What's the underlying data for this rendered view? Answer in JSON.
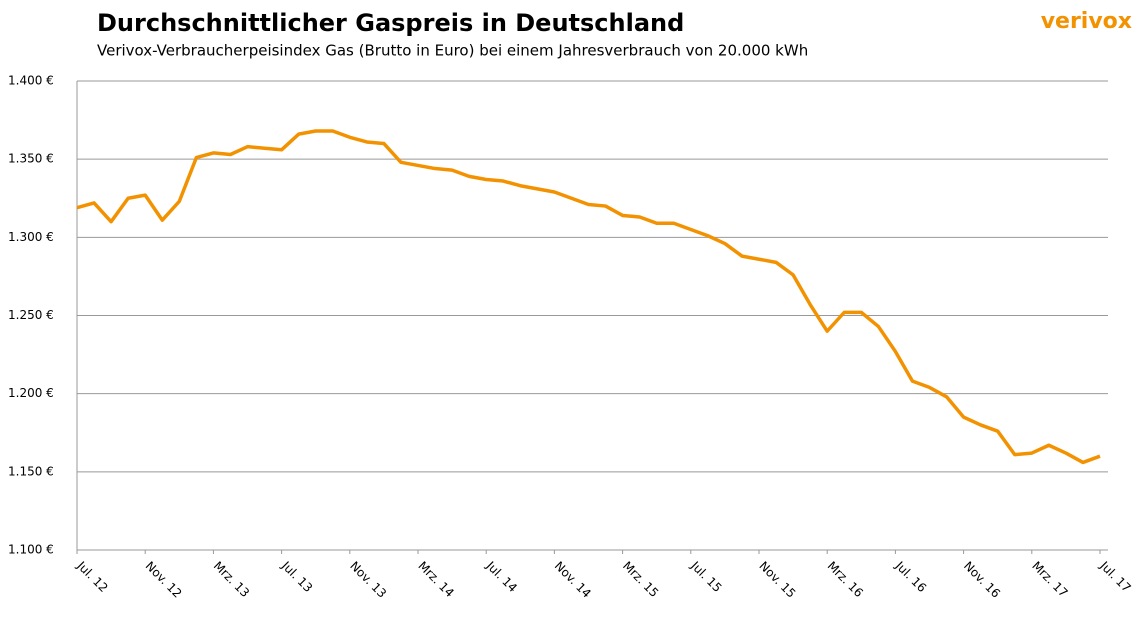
{
  "chart_data": {
    "type": "line",
    "title": "Durchschnittlicher Gaspreis in Deutschland",
    "subtitle": "Verivox-Verbraucherpeisindex Gas (Brutto in Euro) bei einem  Jahresverbrauch von 20.000 kWh",
    "logo": "verivox",
    "categories": [
      "Jul. 12",
      null,
      null,
      null,
      "Nov. 12",
      null,
      null,
      null,
      "Mrz. 13",
      null,
      null,
      null,
      "Jul. 13",
      null,
      null,
      null,
      "Nov. 13",
      null,
      null,
      null,
      "Mrz. 14",
      null,
      null,
      null,
      "Jul. 14",
      null,
      null,
      null,
      "Nov. 14",
      null,
      null,
      null,
      "Mrz. 15",
      null,
      null,
      null,
      "Jul. 15",
      null,
      null,
      null,
      "Nov. 15",
      null,
      null,
      null,
      "Mrz. 16",
      null,
      null,
      null,
      "Jul. 16",
      null,
      null,
      null,
      "Nov. 16",
      null,
      null,
      null,
      "Mrz. 17",
      null,
      null,
      null,
      "Jul. 17"
    ],
    "series": [
      {
        "color": "#f39200",
        "values": [
          1319,
          1322,
          1310,
          1325,
          1327,
          1311,
          1323,
          1351,
          1354,
          1353,
          1358,
          1357,
          1356,
          1366,
          1368,
          1368,
          1364,
          1361,
          1360,
          1348,
          1346,
          1344,
          1343,
          1339,
          1337,
          1336,
          1333,
          1331,
          1329,
          1325,
          1321,
          1320,
          1314,
          1313,
          1309,
          1309,
          1305,
          1301,
          1296,
          1288,
          1286,
          1284,
          1276,
          1257,
          1240,
          1252,
          1252,
          1243,
          1227,
          1208,
          1204,
          1198,
          1185,
          1180,
          1176,
          1161,
          1162,
          1167,
          1162,
          1156,
          1160
        ]
      }
    ],
    "ylim": [
      1100,
      1400
    ],
    "yticks": [
      {
        "value": 1100,
        "label": "1.100 €"
      },
      {
        "value": 1150,
        "label": "1.150 €"
      },
      {
        "value": 1200,
        "label": "1.200 €"
      },
      {
        "value": 1250,
        "label": "1.250 €"
      },
      {
        "value": 1300,
        "label": "1.300 €"
      },
      {
        "value": 1350,
        "label": "1.350 €"
      },
      {
        "value": 1400,
        "label": "1.400 €"
      }
    ],
    "grid": true
  }
}
